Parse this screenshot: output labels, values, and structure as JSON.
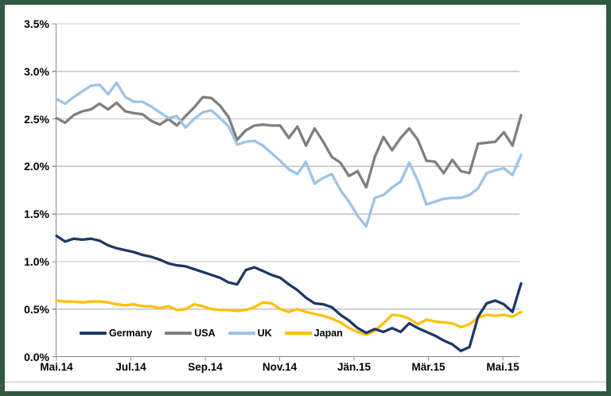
{
  "frame": {
    "border_color": "#2d5a40",
    "background": "#ffffff"
  },
  "chart_data": {
    "type": "line",
    "title": "",
    "xlabel": "",
    "ylabel": "",
    "unit": "percent",
    "grid": true,
    "legend_position": "bottom-left-inside",
    "axis_color": "#8c8c8c",
    "grid_color": "#c3c3c3",
    "ylim": [
      0,
      3.5
    ],
    "y_step": 0.5,
    "y_tick_labels": [
      "3.5%",
      "3.0%",
      "2.5%",
      "2.0%",
      "1.5%",
      "1.0%",
      "0.5%",
      "0.0%"
    ],
    "x_tick_labels": [
      "Mai.14",
      "Jul.14",
      "Sep.14",
      "Nov.14",
      "Jän.15",
      "Mär.15",
      "Mai.15"
    ],
    "x_range_note": "weekly observations May 2014 - May 2015",
    "series": [
      {
        "name": "Germany",
        "color": "#1f3864",
        "values": [
          1.27,
          1.21,
          1.24,
          1.23,
          1.24,
          1.22,
          1.17,
          1.14,
          1.12,
          1.1,
          1.07,
          1.05,
          1.02,
          0.98,
          0.96,
          0.95,
          0.92,
          0.89,
          0.86,
          0.83,
          0.78,
          0.76,
          0.91,
          0.94,
          0.9,
          0.86,
          0.83,
          0.76,
          0.7,
          0.62,
          0.56,
          0.55,
          0.52,
          0.44,
          0.38,
          0.3,
          0.25,
          0.29,
          0.26,
          0.3,
          0.26,
          0.35,
          0.3,
          0.26,
          0.22,
          0.17,
          0.13,
          0.06,
          0.1,
          0.42,
          0.56,
          0.59,
          0.55,
          0.47,
          0.77
        ]
      },
      {
        "name": "USA",
        "color": "#7f7f7f",
        "values": [
          2.51,
          2.46,
          2.54,
          2.58,
          2.6,
          2.66,
          2.6,
          2.67,
          2.58,
          2.56,
          2.55,
          2.48,
          2.44,
          2.5,
          2.43,
          2.53,
          2.62,
          2.73,
          2.72,
          2.64,
          2.52,
          2.28,
          2.38,
          2.43,
          2.44,
          2.43,
          2.43,
          2.3,
          2.42,
          2.22,
          2.4,
          2.26,
          2.1,
          2.04,
          1.9,
          1.95,
          1.78,
          2.1,
          2.31,
          2.17,
          2.3,
          2.4,
          2.28,
          2.06,
          2.05,
          1.93,
          2.07,
          1.95,
          1.93,
          2.24,
          2.25,
          2.26,
          2.36,
          2.22,
          2.54
        ]
      },
      {
        "name": "UK",
        "color": "#9dc3e6",
        "values": [
          2.71,
          2.66,
          2.73,
          2.79,
          2.85,
          2.86,
          2.76,
          2.88,
          2.73,
          2.68,
          2.68,
          2.63,
          2.57,
          2.51,
          2.53,
          2.41,
          2.5,
          2.57,
          2.59,
          2.51,
          2.42,
          2.23,
          2.26,
          2.27,
          2.22,
          2.14,
          2.06,
          1.97,
          1.92,
          2.05,
          1.82,
          1.88,
          1.92,
          1.75,
          1.63,
          1.48,
          1.37,
          1.67,
          1.7,
          1.78,
          1.84,
          2.04,
          1.85,
          1.6,
          1.63,
          1.66,
          1.67,
          1.67,
          1.7,
          1.77,
          1.93,
          1.96,
          1.98,
          1.91,
          2.12
        ]
      },
      {
        "name": "Japan",
        "color": "#ffc000",
        "values": [
          0.59,
          0.58,
          0.58,
          0.57,
          0.58,
          0.58,
          0.57,
          0.55,
          0.54,
          0.55,
          0.53,
          0.53,
          0.51,
          0.53,
          0.49,
          0.5,
          0.55,
          0.53,
          0.5,
          0.49,
          0.49,
          0.48,
          0.49,
          0.52,
          0.57,
          0.56,
          0.5,
          0.47,
          0.5,
          0.47,
          0.45,
          0.43,
          0.4,
          0.36,
          0.3,
          0.26,
          0.23,
          0.27,
          0.35,
          0.44,
          0.43,
          0.4,
          0.34,
          0.39,
          0.37,
          0.36,
          0.35,
          0.31,
          0.34,
          0.41,
          0.44,
          0.43,
          0.44,
          0.42,
          0.47
        ]
      }
    ]
  }
}
